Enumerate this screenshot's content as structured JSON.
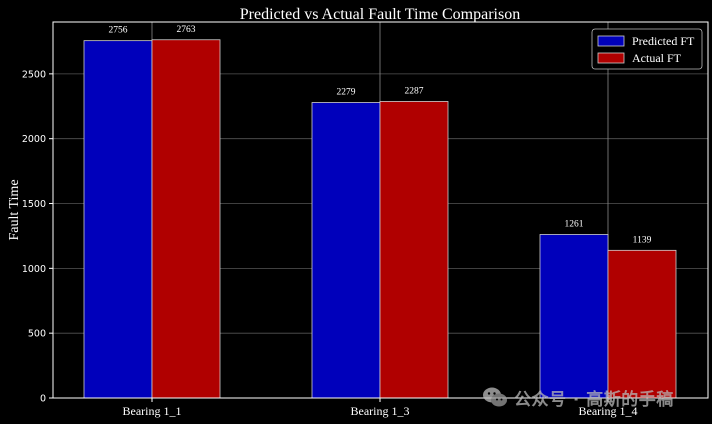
{
  "chart_data": {
    "type": "bar",
    "title": "Predicted vs Actual Fault Time Comparison",
    "xlabel": "",
    "ylabel": "Fault Time",
    "categories": [
      "Bearing 1_1",
      "Bearing 1_3",
      "Bearing 1_4"
    ],
    "series": [
      {
        "name": "Predicted FT",
        "values": [
          2756,
          2279,
          1261
        ],
        "color": "#0000bb"
      },
      {
        "name": "Actual FT",
        "values": [
          2763,
          2287,
          1139
        ],
        "color": "#b00000"
      }
    ],
    "ylim": [
      0,
      2900
    ],
    "yticks": [
      0,
      500,
      1000,
      1500,
      2000,
      2500
    ],
    "grid": true,
    "legend_position": "top-right",
    "theme": {
      "background": "#000000",
      "text": "#ffffff",
      "grid": "#555555",
      "bar_edge": "#cfcfcf"
    }
  },
  "watermark": {
    "icon": "wechat-icon",
    "text": "公众号 · 高斯的手稿"
  }
}
